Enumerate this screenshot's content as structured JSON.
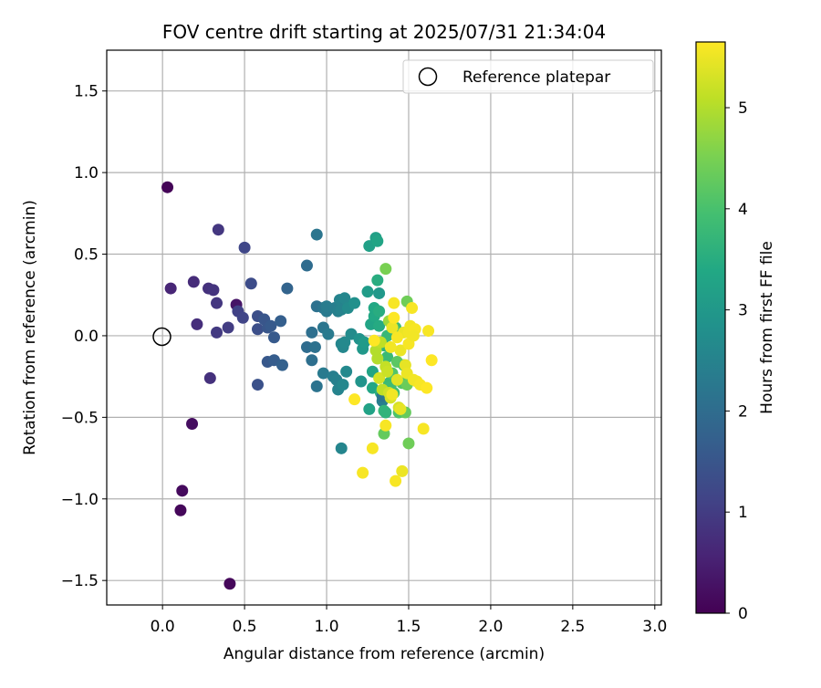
{
  "chart_data": {
    "type": "scatter",
    "title": "FOV centre drift starting at 2025/07/31 21:34:04",
    "xlabel": "Angular distance from reference (arcmin)",
    "ylabel": "Rotation from reference (arcmin)",
    "xlim": [
      -0.34,
      3.04
    ],
    "ylim": [
      -1.65,
      1.75
    ],
    "xticks": [
      0.0,
      0.5,
      1.0,
      1.5,
      2.0,
      2.5,
      3.0
    ],
    "xtick_labels": [
      "0.0",
      "0.5",
      "1.0",
      "1.5",
      "2.0",
      "2.5",
      "3.0"
    ],
    "yticks": [
      -1.5,
      -1.0,
      -0.5,
      0.0,
      0.5,
      1.0,
      1.5
    ],
    "ytick_labels": [
      "−1.5",
      "−1.0",
      "−0.5",
      "0.0",
      "0.5",
      "1.0",
      "1.5"
    ],
    "grid": true,
    "legend": {
      "position": "top-right",
      "entries": [
        "Reference platepar"
      ]
    },
    "reference_point": {
      "x": 0.0,
      "y": 0.0,
      "label": "Reference platepar"
    },
    "colorbar": {
      "label": "Hours from first FF file",
      "colormap": "viridis",
      "range": [
        0,
        5.65
      ],
      "ticks": [
        0,
        1,
        2,
        3,
        4,
        5
      ],
      "tick_labels": [
        "0",
        "1",
        "2",
        "3",
        "4",
        "5"
      ]
    },
    "series": [
      {
        "points": [
          [
            0.03,
            0.91,
            0.05
          ],
          [
            0.05,
            0.29,
            0.6
          ],
          [
            0.12,
            -0.95,
            0.15
          ],
          [
            0.11,
            -1.07,
            0.1
          ],
          [
            0.18,
            -0.54,
            0.2
          ],
          [
            0.41,
            -1.52,
            0.1
          ],
          [
            0.19,
            0.33,
            0.7
          ],
          [
            0.21,
            0.07,
            0.75
          ],
          [
            0.28,
            0.29,
            0.8
          ],
          [
            0.31,
            0.28,
            0.85
          ],
          [
            0.33,
            0.2,
            0.9
          ],
          [
            0.29,
            -0.26,
            0.8
          ],
          [
            0.34,
            0.65,
            0.9
          ],
          [
            0.33,
            0.02,
            0.95
          ],
          [
            0.4,
            0.05,
            1.0
          ],
          [
            0.45,
            0.19,
            0.3
          ],
          [
            0.46,
            0.15,
            1.1
          ],
          [
            0.49,
            0.11,
            1.15
          ],
          [
            0.5,
            0.54,
            1.2
          ],
          [
            0.54,
            0.32,
            1.3
          ],
          [
            0.58,
            0.12,
            1.35
          ],
          [
            0.58,
            0.04,
            1.35
          ],
          [
            0.58,
            -0.3,
            1.4
          ],
          [
            0.62,
            0.1,
            1.5
          ],
          [
            0.64,
            -0.16,
            1.55
          ],
          [
            0.64,
            0.05,
            1.5
          ],
          [
            0.66,
            0.06,
            1.6
          ],
          [
            0.68,
            -0.01,
            1.6
          ],
          [
            0.68,
            -0.15,
            1.65
          ],
          [
            0.72,
            0.09,
            1.7
          ],
          [
            0.73,
            -0.18,
            1.75
          ],
          [
            0.76,
            0.29,
            1.8
          ],
          [
            0.88,
            0.43,
            2.0
          ],
          [
            0.88,
            -0.07,
            2.0
          ],
          [
            0.91,
            0.02,
            2.05
          ],
          [
            0.91,
            -0.15,
            2.05
          ],
          [
            0.93,
            -0.07,
            2.1
          ],
          [
            0.94,
            0.18,
            2.1
          ],
          [
            0.94,
            -0.31,
            2.15
          ],
          [
            0.94,
            0.62,
            2.2
          ],
          [
            0.98,
            0.05,
            2.2
          ],
          [
            0.98,
            0.17,
            2.2
          ],
          [
            0.98,
            -0.23,
            2.3
          ],
          [
            1.0,
            0.15,
            2.3
          ],
          [
            1.0,
            0.18,
            2.35
          ],
          [
            1.01,
            0.01,
            2.3
          ],
          [
            1.04,
            -0.25,
            2.4
          ],
          [
            1.05,
            0.17,
            2.4
          ],
          [
            1.06,
            -0.27,
            2.45
          ],
          [
            1.07,
            0.15,
            2.45
          ],
          [
            1.07,
            -0.33,
            2.5
          ],
          [
            1.08,
            0.22,
            2.5
          ],
          [
            1.09,
            0.16,
            2.5
          ],
          [
            1.09,
            -0.05,
            2.55
          ],
          [
            1.09,
            -0.69,
            2.55
          ],
          [
            1.1,
            -0.07,
            2.6
          ],
          [
            1.1,
            -0.3,
            2.6
          ],
          [
            1.11,
            0.23,
            2.6
          ],
          [
            1.11,
            -0.04,
            2.65
          ],
          [
            1.12,
            -0.22,
            2.65
          ],
          [
            1.13,
            0.17,
            2.7
          ],
          [
            1.15,
            0.01,
            2.7
          ],
          [
            1.17,
            0.2,
            2.8
          ],
          [
            1.2,
            -0.02,
            2.85
          ],
          [
            1.21,
            -0.28,
            2.9
          ],
          [
            1.22,
            -0.08,
            3.0
          ],
          [
            1.23,
            -0.04,
            3.05
          ],
          [
            1.25,
            0.27,
            3.1
          ],
          [
            1.26,
            0.55,
            3.2
          ],
          [
            1.26,
            -0.45,
            3.25
          ],
          [
            1.27,
            0.07,
            3.3
          ],
          [
            1.28,
            -0.22,
            3.3
          ],
          [
            1.28,
            -0.32,
            3.35
          ],
          [
            1.29,
            0.12,
            3.4
          ],
          [
            1.29,
            0.17,
            3.4
          ],
          [
            1.3,
            0.6,
            3.2
          ],
          [
            1.31,
            0.58,
            3.3
          ],
          [
            1.31,
            0.34,
            3.5
          ],
          [
            1.32,
            0.15,
            3.5
          ],
          [
            1.32,
            0.06,
            3.45
          ],
          [
            1.32,
            0.26,
            3.0
          ],
          [
            1.33,
            -0.35,
            3.55
          ],
          [
            1.34,
            -0.4,
            2.4
          ],
          [
            1.34,
            -0.37,
            2.2
          ],
          [
            1.35,
            -0.06,
            3.6
          ],
          [
            1.35,
            -0.46,
            3.7
          ],
          [
            1.35,
            -0.6,
            4.3
          ],
          [
            1.36,
            -0.47,
            3.65
          ],
          [
            1.36,
            0.41,
            4.5
          ],
          [
            1.37,
            0.0,
            3.75
          ],
          [
            1.37,
            -0.13,
            3.8
          ],
          [
            1.38,
            -0.29,
            3.8
          ],
          [
            1.39,
            -0.31,
            3.85
          ],
          [
            1.4,
            -0.23,
            4.1
          ],
          [
            1.41,
            -0.35,
            3.9
          ],
          [
            1.42,
            0.05,
            3.9
          ],
          [
            1.43,
            -0.16,
            4.2
          ],
          [
            1.44,
            0.02,
            4.0
          ],
          [
            1.44,
            -0.47,
            4.05
          ],
          [
            1.46,
            -0.29,
            4.1
          ],
          [
            1.47,
            -0.18,
            4.15
          ],
          [
            1.48,
            -0.47,
            4.3
          ],
          [
            1.49,
            0.21,
            4.4
          ],
          [
            1.49,
            -0.3,
            4.35
          ],
          [
            1.5,
            -0.66,
            4.4
          ],
          [
            1.38,
            0.09,
            4.8
          ],
          [
            1.3,
            -0.09,
            5.0
          ],
          [
            1.31,
            -0.14,
            5.0
          ],
          [
            1.33,
            -0.04,
            5.1
          ],
          [
            1.32,
            -0.26,
            5.3
          ],
          [
            1.34,
            -0.33,
            5.1
          ],
          [
            1.36,
            -0.19,
            5.15
          ],
          [
            1.37,
            -0.22,
            5.2
          ],
          [
            1.38,
            -0.35,
            5.25
          ],
          [
            1.39,
            -0.38,
            5.3
          ],
          [
            1.4,
            0.05,
            5.5
          ],
          [
            1.41,
            0.2,
            5.6
          ],
          [
            1.42,
            -0.89,
            5.6
          ],
          [
            1.43,
            -0.27,
            5.4
          ],
          [
            1.44,
            -0.44,
            5.3
          ],
          [
            1.45,
            -0.45,
            5.45
          ],
          [
            1.46,
            -0.83,
            5.5
          ],
          [
            1.47,
            0.02,
            5.5
          ],
          [
            1.48,
            -0.18,
            5.45
          ],
          [
            1.49,
            -0.23,
            5.5
          ],
          [
            1.5,
            0.02,
            5.55
          ],
          [
            1.51,
            0.06,
            5.55
          ],
          [
            1.52,
            0.17,
            5.6
          ],
          [
            1.53,
            -0.27,
            5.55
          ],
          [
            1.54,
            0.04,
            5.6
          ],
          [
            1.55,
            -0.28,
            5.55
          ],
          [
            1.57,
            -0.3,
            5.6
          ],
          [
            1.59,
            -0.57,
            5.6
          ],
          [
            1.61,
            -0.32,
            5.65
          ],
          [
            1.62,
            0.03,
            5.6
          ],
          [
            1.64,
            -0.15,
            5.65
          ],
          [
            1.22,
            -0.84,
            5.6
          ],
          [
            1.17,
            -0.39,
            5.65
          ],
          [
            1.28,
            -0.69,
            5.6
          ],
          [
            1.29,
            -0.03,
            5.65
          ],
          [
            1.36,
            -0.55,
            5.6
          ],
          [
            1.4,
            -0.36,
            5.55
          ],
          [
            1.45,
            -0.09,
            5.5
          ],
          [
            1.5,
            -0.05,
            5.6
          ],
          [
            1.53,
            0.0,
            5.55
          ],
          [
            1.43,
            -0.01,
            5.6
          ],
          [
            1.41,
            0.11,
            5.65
          ],
          [
            1.39,
            -0.07,
            5.55
          ]
        ]
      }
    ]
  }
}
